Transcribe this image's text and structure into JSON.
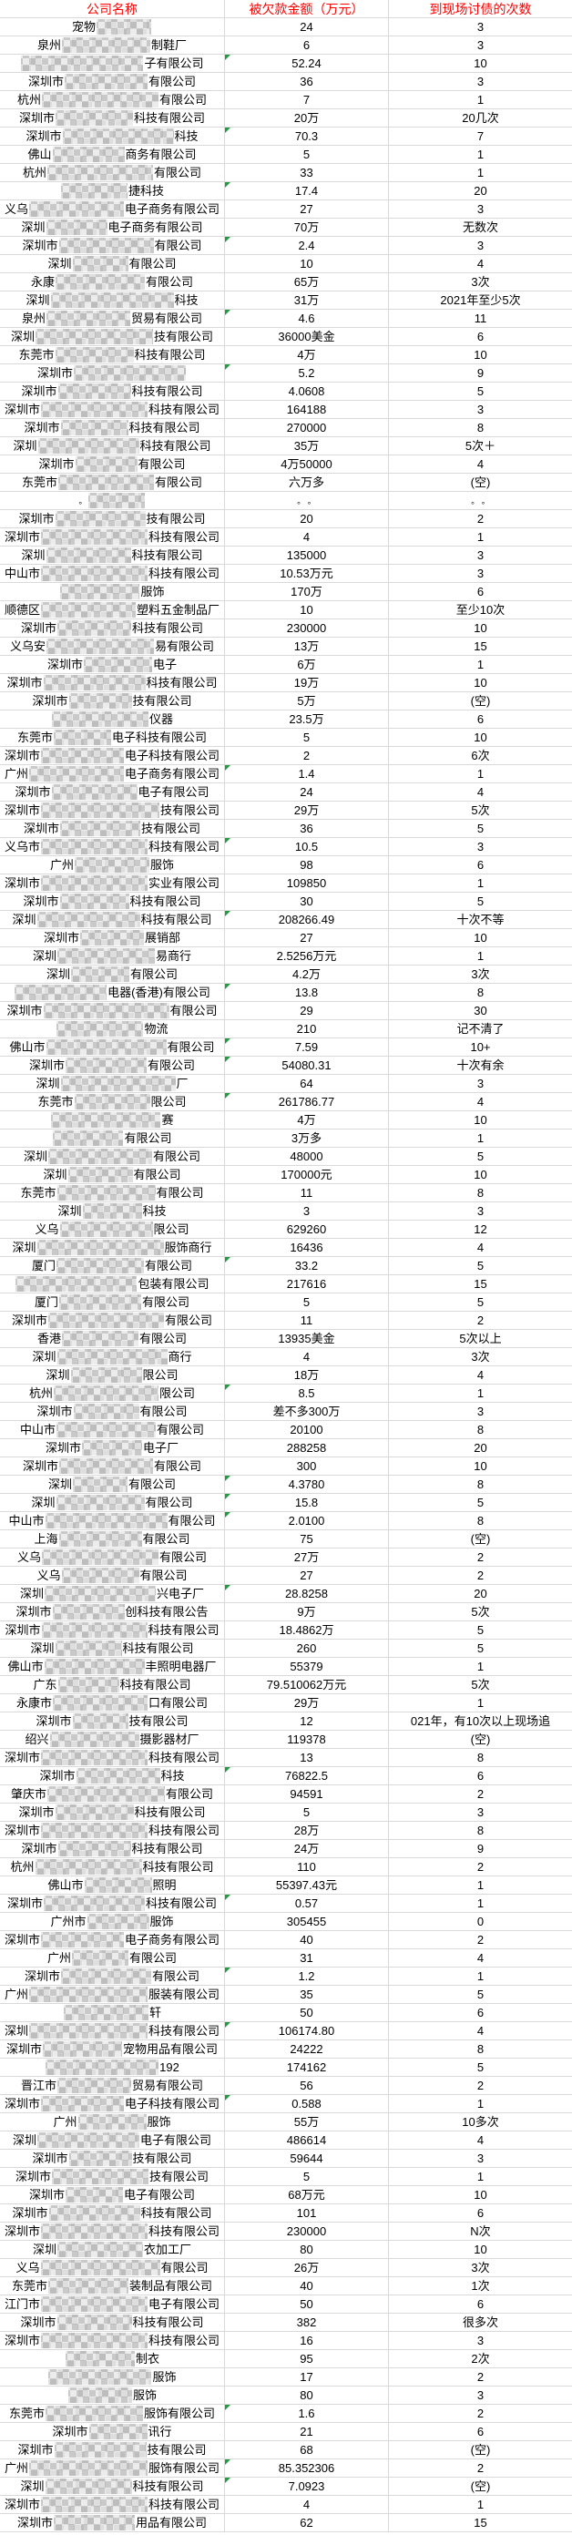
{
  "colors": {
    "header_text": "#ff0000",
    "gridline": "#d9d9d9",
    "marker_triangle": "#1f9d3f",
    "body_text": "#000000"
  },
  "table": {
    "columns": [
      "公司名称",
      "被欠款金额（万元）",
      "到现场讨债的次数"
    ],
    "rows": [
      {
        "prefix": "宠物",
        "suffix": "",
        "amount": "24",
        "visits": "3",
        "marker": false
      },
      {
        "prefix": "泉州",
        "suffix": "制鞋厂",
        "amount": "6",
        "visits": "3",
        "marker": false
      },
      {
        "prefix": "",
        "suffix": "子有限公司",
        "amount": "52.24",
        "visits": "10",
        "marker": true
      },
      {
        "prefix": "深圳市",
        "suffix": "有限公司",
        "amount": "36",
        "visits": "3",
        "marker": false
      },
      {
        "prefix": "杭州",
        "suffix": "有限公司",
        "amount": "7",
        "visits": "1",
        "marker": false
      },
      {
        "prefix": "深圳市",
        "suffix": "科技有限公司",
        "amount": "20万",
        "visits": "20几次",
        "marker": false
      },
      {
        "prefix": "深圳市",
        "suffix": "科技",
        "amount": "70.3",
        "visits": "7",
        "marker": true
      },
      {
        "prefix": "佛山",
        "suffix": "商务有限公司",
        "amount": "5",
        "visits": "1",
        "marker": false
      },
      {
        "prefix": "杭州",
        "suffix": "有限公司",
        "amount": "33",
        "visits": "1",
        "marker": false
      },
      {
        "prefix": "",
        "suffix": "捷科技",
        "amount": "17.4",
        "visits": "20",
        "marker": true
      },
      {
        "prefix": "义乌",
        "suffix": "电子商务有限公司",
        "amount": "27",
        "visits": "3",
        "marker": false
      },
      {
        "prefix": "深圳",
        "suffix": "电子商务有限公司",
        "amount": "70万",
        "visits": "无数次",
        "marker": false
      },
      {
        "prefix": "深圳市",
        "suffix": "有限公司",
        "amount": "2.4",
        "visits": "3",
        "marker": true
      },
      {
        "prefix": "深圳",
        "suffix": "有限公司",
        "amount": "10",
        "visits": "4",
        "marker": false
      },
      {
        "prefix": "永康",
        "suffix": "有限公司",
        "amount": "65万",
        "visits": "3次",
        "marker": false
      },
      {
        "prefix": "深圳",
        "suffix": "科技",
        "amount": "31万",
        "visits": "2021年至少5次",
        "marker": false
      },
      {
        "prefix": "泉州",
        "suffix": "贸易有限公司",
        "amount": "4.6",
        "visits": "11",
        "marker": true
      },
      {
        "prefix": "深圳",
        "suffix": "技有限公司",
        "amount": "36000美金",
        "visits": "6",
        "marker": false
      },
      {
        "prefix": "东莞市",
        "suffix": "科技有限公司",
        "amount": "4万",
        "visits": "10",
        "marker": false
      },
      {
        "prefix": "深圳市",
        "suffix": "",
        "amount": "5.2",
        "visits": "9",
        "marker": true
      },
      {
        "prefix": "深圳市",
        "suffix": "科技有限公司",
        "amount": "4.0608",
        "visits": "5",
        "marker": false
      },
      {
        "prefix": "深圳市",
        "suffix": "科技有限公司",
        "amount": "164188",
        "visits": "3",
        "marker": false
      },
      {
        "prefix": "深圳市",
        "suffix": "科技有限公司",
        "amount": "270000",
        "visits": "8",
        "marker": false
      },
      {
        "prefix": "深圳",
        "suffix": "科技有限公司",
        "amount": "35万",
        "visits": "5次＋",
        "marker": false
      },
      {
        "prefix": "深圳市",
        "suffix": "有限公司",
        "amount": "4万50000",
        "visits": "4",
        "marker": false
      },
      {
        "prefix": "东莞市",
        "suffix": "有限公司",
        "amount": "六万多",
        "visits": "(空)",
        "marker": false
      },
      {
        "prefix": "。",
        "suffix": "",
        "amount": "。 。",
        "visits": "。 。",
        "marker": false
      },
      {
        "prefix": "深圳市",
        "suffix": "技有限公司",
        "amount": "20",
        "visits": "2",
        "marker": false
      },
      {
        "prefix": "深圳市",
        "suffix": "科技有限公司",
        "amount": "4",
        "visits": "1",
        "marker": false
      },
      {
        "prefix": "深圳",
        "suffix": "科技有限公司",
        "amount": "135000",
        "visits": "3",
        "marker": false
      },
      {
        "prefix": "中山市",
        "suffix": "科技有限公司",
        "amount": "10.53万元",
        "visits": "3",
        "marker": false
      },
      {
        "prefix": "",
        "suffix": "服饰",
        "amount": "170万",
        "visits": "6",
        "marker": false
      },
      {
        "prefix": "顺德区",
        "suffix": "塑料五金制品厂",
        "amount": "10",
        "visits": "至少10次",
        "marker": false
      },
      {
        "prefix": "深圳市",
        "suffix": "科技有限公司",
        "amount": "230000",
        "visits": "10",
        "marker": false
      },
      {
        "prefix": "义乌安",
        "suffix": "易有限公司",
        "amount": "13万",
        "visits": "15",
        "marker": false
      },
      {
        "prefix": "深圳市",
        "suffix": "电子",
        "amount": "6万",
        "visits": "1",
        "marker": false
      },
      {
        "prefix": "深圳市",
        "suffix": "科技有限公司",
        "amount": "19万",
        "visits": "10",
        "marker": false
      },
      {
        "prefix": "深圳市",
        "suffix": "技有限公司",
        "amount": "5万",
        "visits": "(空)",
        "marker": false
      },
      {
        "prefix": "",
        "suffix": "仪器",
        "amount": "23.5万",
        "visits": "6",
        "marker": false
      },
      {
        "prefix": "东莞市",
        "suffix": "电子科技有限公司",
        "amount": "5",
        "visits": "10",
        "marker": false
      },
      {
        "prefix": "深圳市",
        "suffix": "电子科技有限公司",
        "amount": "2",
        "visits": "6次",
        "marker": false
      },
      {
        "prefix": "广州",
        "suffix": "电子商务有限公司",
        "amount": "1.4",
        "visits": "1",
        "marker": true
      },
      {
        "prefix": "深圳市",
        "suffix": "电子有限公司",
        "amount": "24",
        "visits": "4",
        "marker": false
      },
      {
        "prefix": "深圳市",
        "suffix": "技有限公司",
        "amount": "29万",
        "visits": "5次",
        "marker": false
      },
      {
        "prefix": "深圳市",
        "suffix": "技有限公司",
        "amount": "36",
        "visits": "5",
        "marker": false
      },
      {
        "prefix": "义乌市",
        "suffix": "科技有限公司",
        "amount": "10.5",
        "visits": "3",
        "marker": true
      },
      {
        "prefix": "广州",
        "suffix": "服饰",
        "amount": "98",
        "visits": "6",
        "marker": false
      },
      {
        "prefix": "深圳市",
        "suffix": "实业有限公司",
        "amount": "109850",
        "visits": "1",
        "marker": false
      },
      {
        "prefix": "深圳市",
        "suffix": "科技有限公司",
        "amount": "30",
        "visits": "5",
        "marker": false
      },
      {
        "prefix": "深圳",
        "suffix": "科技有限公司",
        "amount": "208266.49",
        "visits": "十次不等",
        "marker": true
      },
      {
        "prefix": "深圳市",
        "suffix": "展销部",
        "amount": "27",
        "visits": "10",
        "marker": false
      },
      {
        "prefix": "深圳",
        "suffix": "易商行",
        "amount": "2.5256万元",
        "visits": "1",
        "marker": false
      },
      {
        "prefix": "深圳",
        "suffix": "有限公司",
        "amount": "4.2万",
        "visits": "3次",
        "marker": false
      },
      {
        "prefix": "",
        "suffix": "电器(香港)有限公司",
        "amount": "13.8",
        "visits": "8",
        "marker": true
      },
      {
        "prefix": "深圳市",
        "suffix": "有限公司",
        "amount": "29",
        "visits": "30",
        "marker": false
      },
      {
        "prefix": "",
        "suffix": "物流",
        "amount": "210",
        "visits": "记不清了",
        "marker": false
      },
      {
        "prefix": "佛山市",
        "suffix": "有限公司",
        "amount": "7.59",
        "visits": "10+",
        "marker": true
      },
      {
        "prefix": "深圳市",
        "suffix": "有限公司",
        "amount": "54080.31",
        "visits": "十次有余",
        "marker": true
      },
      {
        "prefix": "深圳",
        "suffix": "厂",
        "amount": "64",
        "visits": "3",
        "marker": false
      },
      {
        "prefix": "东莞市",
        "suffix": "限公司",
        "amount": "261786.77",
        "visits": "4",
        "marker": true
      },
      {
        "prefix": "",
        "suffix": "赛",
        "amount": "4万",
        "visits": "10",
        "marker": false
      },
      {
        "prefix": "",
        "suffix": "有限公司",
        "amount": "3万多",
        "visits": "1",
        "marker": false
      },
      {
        "prefix": "深圳",
        "suffix": "有限公司",
        "amount": "48000",
        "visits": "5",
        "marker": false
      },
      {
        "prefix": "深圳",
        "suffix": "有限公司",
        "amount": "170000元",
        "visits": "10",
        "marker": false
      },
      {
        "prefix": "东莞市",
        "suffix": "有限公司",
        "amount": "11",
        "visits": "8",
        "marker": false
      },
      {
        "prefix": "深圳",
        "suffix": "科技",
        "amount": "3",
        "visits": "3",
        "marker": false
      },
      {
        "prefix": "义乌",
        "suffix": "限公司",
        "amount": "629260",
        "visits": "12",
        "marker": false
      },
      {
        "prefix": "深圳",
        "suffix": "服饰商行",
        "amount": "16436",
        "visits": "4",
        "marker": false
      },
      {
        "prefix": "厦门",
        "suffix": "有限公司",
        "amount": "33.2",
        "visits": "5",
        "marker": true
      },
      {
        "prefix": "",
        "suffix": "包装有限公司",
        "amount": "217616",
        "visits": "15",
        "marker": false
      },
      {
        "prefix": "厦门",
        "suffix": "有限公司",
        "amount": "5",
        "visits": "5",
        "marker": false
      },
      {
        "prefix": "深圳市",
        "suffix": "有限公司",
        "amount": "11",
        "visits": "2",
        "marker": false
      },
      {
        "prefix": "香港",
        "suffix": "有限公司",
        "amount": "13935美金",
        "visits": "5次以上",
        "marker": false
      },
      {
        "prefix": "深圳",
        "suffix": "商行",
        "amount": "4",
        "visits": "3次",
        "marker": false
      },
      {
        "prefix": "深圳",
        "suffix": "限公司",
        "amount": "18万",
        "visits": "4",
        "marker": false
      },
      {
        "prefix": "杭州",
        "suffix": "限公司",
        "amount": "8.5",
        "visits": "1",
        "marker": true
      },
      {
        "prefix": "深圳市",
        "suffix": "有限公司",
        "amount": "差不多300万",
        "visits": "3",
        "marker": false
      },
      {
        "prefix": "中山市",
        "suffix": "有限公司",
        "amount": "20100",
        "visits": "8",
        "marker": false
      },
      {
        "prefix": "深圳市",
        "suffix": "电子厂",
        "amount": "288258",
        "visits": "20",
        "marker": false
      },
      {
        "prefix": "深圳市",
        "suffix": "有限公司",
        "amount": "300",
        "visits": "10",
        "marker": false
      },
      {
        "prefix": "深圳",
        "suffix": "有限公司",
        "amount": "4.3780",
        "visits": "8",
        "marker": true
      },
      {
        "prefix": "深圳",
        "suffix": "有限公司",
        "amount": "15.8",
        "visits": "5",
        "marker": true
      },
      {
        "prefix": "中山市",
        "suffix": "有限公司",
        "amount": "2.0100",
        "visits": "8",
        "marker": true
      },
      {
        "prefix": "上海",
        "suffix": "有限公司",
        "amount": "75",
        "visits": "(空)",
        "marker": false
      },
      {
        "prefix": "义乌",
        "suffix": "有限公司",
        "amount": "27万",
        "visits": "2",
        "marker": false
      },
      {
        "prefix": "义乌",
        "suffix": "有限公司",
        "amount": "27",
        "visits": "2",
        "marker": false
      },
      {
        "prefix": "深圳",
        "suffix": "兴电子厂",
        "amount": "28.8258",
        "visits": "20",
        "marker": true
      },
      {
        "prefix": "深圳市",
        "suffix": "创科技有限公告",
        "amount": "9万",
        "visits": "5次",
        "marker": false
      },
      {
        "prefix": "深圳市",
        "suffix": "科技有限公司",
        "amount": "18.4862万",
        "visits": "5",
        "marker": false
      },
      {
        "prefix": "深圳",
        "suffix": "科技有限公司",
        "amount": "260",
        "visits": "5",
        "marker": false
      },
      {
        "prefix": "佛山市",
        "suffix": "丰照明电器厂",
        "amount": "55379",
        "visits": "1",
        "marker": false
      },
      {
        "prefix": "广东",
        "suffix": "科技有限公司",
        "amount": "79.510062万元",
        "visits": "5次",
        "marker": false
      },
      {
        "prefix": "永康市",
        "suffix": "口有限公司",
        "amount": "29万",
        "visits": "1",
        "marker": false
      },
      {
        "prefix": "深圳市",
        "suffix": "技有限公司",
        "amount": "12",
        "visits": "021年，有10次以上现场追",
        "marker": false
      },
      {
        "prefix": "绍兴",
        "suffix": "摄影器材厂",
        "amount": "119378",
        "visits": "(空)",
        "marker": false
      },
      {
        "prefix": "深圳市",
        "suffix": "科技有限公司",
        "amount": "13",
        "visits": "8",
        "marker": false
      },
      {
        "prefix": "深圳市",
        "suffix": "科技",
        "amount": "76822.5",
        "visits": "6",
        "marker": true
      },
      {
        "prefix": "肇庆市",
        "suffix": "有限公司",
        "amount": "94591",
        "visits": "2",
        "marker": false
      },
      {
        "prefix": "深圳市",
        "suffix": "科技有限公司",
        "amount": "5",
        "visits": "3",
        "marker": false
      },
      {
        "prefix": "深圳市",
        "suffix": "科技有限公司",
        "amount": "28万",
        "visits": "8",
        "marker": false
      },
      {
        "prefix": "深圳市",
        "suffix": "科技有限公司",
        "amount": "24万",
        "visits": "9",
        "marker": false
      },
      {
        "prefix": "杭州",
        "suffix": "科技有限公司",
        "amount": "110",
        "visits": "2",
        "marker": false
      },
      {
        "prefix": "佛山市",
        "suffix": "照明",
        "amount": "55397.43元",
        "visits": "1",
        "marker": false
      },
      {
        "prefix": "深圳市",
        "suffix": "科技有限公司",
        "amount": "0.57",
        "visits": "1",
        "marker": true
      },
      {
        "prefix": "广州市",
        "suffix": "服饰",
        "amount": "305455",
        "visits": "0",
        "marker": false
      },
      {
        "prefix": "深圳市",
        "suffix": "电子商务有限公司",
        "amount": "40",
        "visits": "2",
        "marker": false
      },
      {
        "prefix": "广州",
        "suffix": "有限公司",
        "amount": "31",
        "visits": "4",
        "marker": false
      },
      {
        "prefix": "深圳市",
        "suffix": "有限公司",
        "amount": "1.2",
        "visits": "1",
        "marker": true
      },
      {
        "prefix": "广州",
        "suffix": "服装有限公司",
        "amount": "35",
        "visits": "5",
        "marker": false
      },
      {
        "prefix": "",
        "suffix": "轩",
        "amount": "50",
        "visits": "6",
        "marker": false
      },
      {
        "prefix": "深圳",
        "suffix": "科技有限公司",
        "amount": "106174.80",
        "visits": "4",
        "marker": true
      },
      {
        "prefix": "深圳市",
        "suffix": "宠物用品有限公司",
        "amount": "24222",
        "visits": "8",
        "marker": false
      },
      {
        "prefix": "",
        "suffix": "192",
        "amount": "174162",
        "visits": "5",
        "marker": false
      },
      {
        "prefix": "晋江市",
        "suffix": "贸易有限公司",
        "amount": "56",
        "visits": "2",
        "marker": false
      },
      {
        "prefix": "深圳市",
        "suffix": "电子科技有限公司",
        "amount": "0.588",
        "visits": "1",
        "marker": true
      },
      {
        "prefix": "广州",
        "suffix": "服饰",
        "amount": "55万",
        "visits": "10多次",
        "marker": false
      },
      {
        "prefix": "深圳",
        "suffix": "电子有限公司",
        "amount": "486614",
        "visits": "4",
        "marker": false
      },
      {
        "prefix": "深圳市",
        "suffix": "技有限公司",
        "amount": "59644",
        "visits": "3",
        "marker": false
      },
      {
        "prefix": "深圳市",
        "suffix": "技有限公司",
        "amount": "5",
        "visits": "1",
        "marker": false
      },
      {
        "prefix": "深圳市",
        "suffix": "电子有限公司",
        "amount": "68万元",
        "visits": "10",
        "marker": false
      },
      {
        "prefix": "深圳市",
        "suffix": "科技有限公司",
        "amount": "101",
        "visits": "6",
        "marker": false
      },
      {
        "prefix": "深圳市",
        "suffix": "科技有限公司",
        "amount": "230000",
        "visits": "N次",
        "marker": false
      },
      {
        "prefix": "深圳",
        "suffix": "衣加工厂",
        "amount": "80",
        "visits": "10",
        "marker": false
      },
      {
        "prefix": "义乌",
        "suffix": "有限公司",
        "amount": "26万",
        "visits": "3次",
        "marker": false
      },
      {
        "prefix": "东莞市",
        "suffix": "装制品有限公司",
        "amount": "40",
        "visits": "1次",
        "marker": false
      },
      {
        "prefix": "江门市",
        "suffix": "电子有限公司",
        "amount": "50",
        "visits": "6",
        "marker": false
      },
      {
        "prefix": "深圳市",
        "suffix": "科技有限公司",
        "amount": "382",
        "visits": "很多次",
        "marker": false
      },
      {
        "prefix": "深圳市",
        "suffix": "科技有限公司",
        "amount": "16",
        "visits": "3",
        "marker": false
      },
      {
        "prefix": "",
        "suffix": "制衣",
        "amount": "95",
        "visits": "2次",
        "marker": false
      },
      {
        "prefix": "",
        "suffix": "服饰",
        "amount": "17",
        "visits": "2",
        "marker": false
      },
      {
        "prefix": "",
        "suffix": "服饰",
        "amount": "80",
        "visits": "3",
        "marker": false
      },
      {
        "prefix": "东莞市",
        "suffix": "服饰有限公司",
        "amount": "1.6",
        "visits": "2",
        "marker": true
      },
      {
        "prefix": "深圳市",
        "suffix": "讯行",
        "amount": "21",
        "visits": "6",
        "marker": false
      },
      {
        "prefix": "深圳市",
        "suffix": "技有限公司",
        "amount": "68",
        "visits": "(空)",
        "marker": false
      },
      {
        "prefix": "广州",
        "suffix": "服饰有限公司",
        "amount": "85.352306",
        "visits": "2",
        "marker": true
      },
      {
        "prefix": "深圳",
        "suffix": "科技有限公司",
        "amount": "7.0923",
        "visits": "(空)",
        "marker": true
      },
      {
        "prefix": "深圳市",
        "suffix": "科技有限公司",
        "amount": "4",
        "visits": "1",
        "marker": false
      },
      {
        "prefix": "深圳市",
        "suffix": "用品有限公司",
        "amount": "62",
        "visits": "15",
        "marker": false
      }
    ]
  }
}
